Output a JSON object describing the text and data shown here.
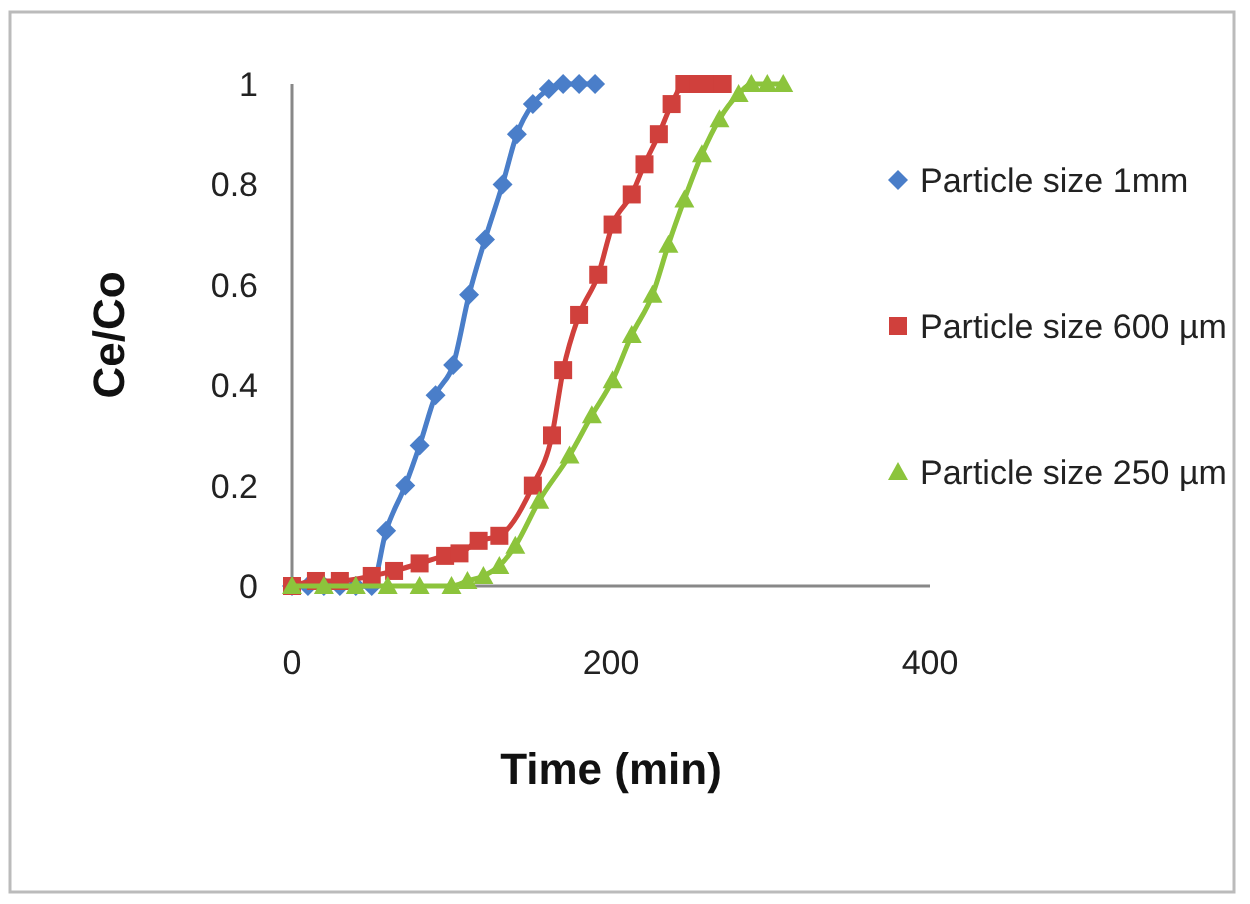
{
  "chart_data": {
    "type": "line",
    "xlabel": "Time (min)",
    "ylabel": "Ce/Co",
    "xlim": [
      0,
      400
    ],
    "xticks": [
      0,
      200,
      400
    ],
    "ylim": [
      0,
      1
    ],
    "yticks": [
      0,
      {
        "value": 0.2,
        "label": "0.2"
      },
      {
        "value": 0.4,
        "label": "0.4"
      },
      {
        "value": 0.6,
        "label": "0.6"
      },
      {
        "value": 0.8,
        "label": "0.8"
      },
      1
    ],
    "grid": false,
    "legend": "right",
    "series": [
      {
        "name": "Particle size 1mm",
        "color": "#4a7ec9",
        "marker": "diamond",
        "x": [
          0,
          10,
          20,
          30,
          40,
          50,
          59,
          71,
          80,
          90,
          101,
          111,
          121,
          132,
          141,
          151,
          161,
          170,
          180,
          190
        ],
        "values": [
          0,
          0,
          0,
          0,
          0,
          0,
          0.11,
          0.2,
          0.28,
          0.38,
          0.44,
          0.58,
          0.69,
          0.8,
          0.9,
          0.96,
          0.99,
          1,
          1,
          1
        ]
      },
      {
        "name": "Particle size 600 µm",
        "color": "#d0403c",
        "marker": "square",
        "x": [
          0,
          15,
          30,
          50,
          64,
          80,
          96,
          105,
          117,
          130,
          151,
          163,
          170,
          180,
          192,
          201,
          213,
          221,
          230,
          238,
          246,
          255,
          263,
          270
        ],
        "values": [
          0,
          0.01,
          0.01,
          0.02,
          0.03,
          0.045,
          0.06,
          0.065,
          0.09,
          0.1,
          0.2,
          0.3,
          0.43,
          0.54,
          0.62,
          0.72,
          0.78,
          0.84,
          0.9,
          0.96,
          1,
          1,
          1,
          1
        ]
      },
      {
        "name": "Particle size 250 µm",
        "color": "#8cc43c",
        "marker": "triangle",
        "x": [
          0,
          20,
          40,
          60,
          80,
          100,
          110,
          120,
          130,
          140,
          155,
          174,
          188,
          201,
          213,
          226,
          236,
          246,
          257,
          268,
          280,
          288,
          298,
          308
        ],
        "values": [
          0,
          0,
          0,
          0,
          0,
          0,
          0.01,
          0.02,
          0.04,
          0.08,
          0.17,
          0.26,
          0.34,
          0.41,
          0.5,
          0.58,
          0.68,
          0.77,
          0.86,
          0.93,
          0.98,
          1,
          1,
          1
        ]
      }
    ]
  }
}
